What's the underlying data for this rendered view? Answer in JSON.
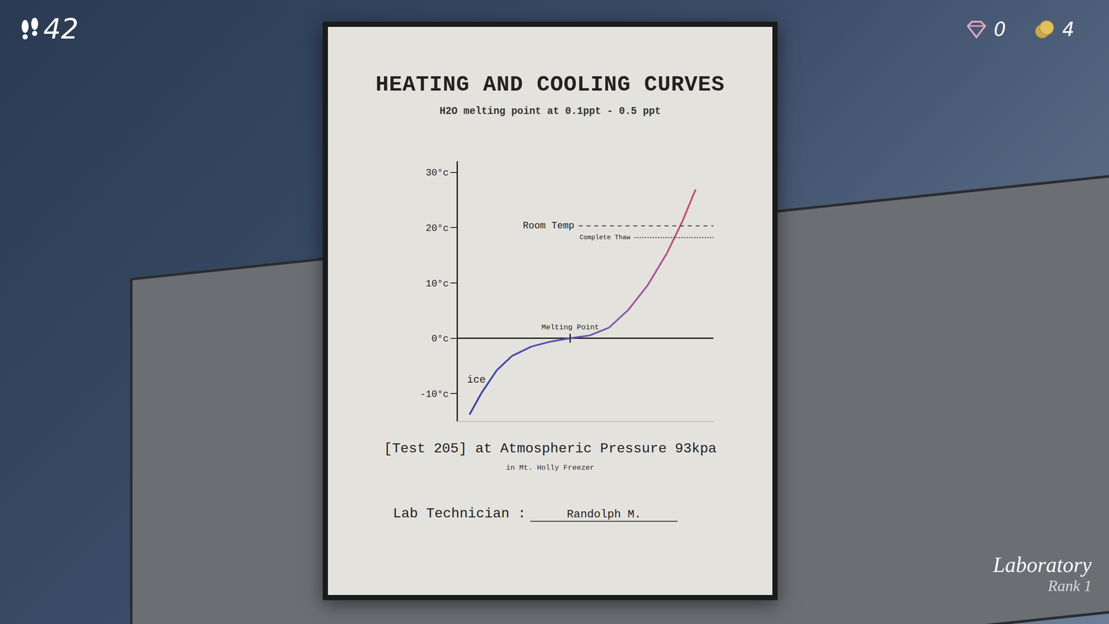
{
  "chart_data": {
    "type": "line",
    "title": "HEATING AND COOLING CURVES",
    "subtitle": "H2O melting point at 0.1ppt -  0.5 ppt",
    "x": [
      0.5,
      1.0,
      1.67,
      2.33,
      3.17,
      4.0,
      4.83,
      5.67,
      6.5,
      7.33,
      8.17,
      9.0,
      9.67,
      10.23
    ],
    "series": [
      {
        "values": [
          -13.8,
          -10,
          -5.8,
          -3.2,
          -1.5,
          -0.6,
          0,
          0.5,
          1.9,
          5.1,
          9.6,
          15.4,
          21.2,
          26.9
        ],
        "colors": [
          "#3a3f9c",
          "#3f43a2",
          "#4548a8",
          "#4b4cab",
          "#5250ae",
          "#5a53b0",
          "#6656b2",
          "#7658b3",
          "#8a58b0",
          "#9c56a2",
          "#ad5390",
          "#b9507c",
          "#c24f6c",
          "#c94f60"
        ]
      }
    ],
    "xlim": [
      0,
      11
    ],
    "ylim": [
      -15,
      32
    ],
    "yticks": [
      {
        "value": 30,
        "label": "30°c"
      },
      {
        "value": 20,
        "label": "20°c"
      },
      {
        "value": 10,
        "label": "10°c"
      },
      {
        "value": 0,
        "label": "0°c"
      },
      {
        "value": -10,
        "label": "-10°c"
      }
    ],
    "tick_labels": "y",
    "grid": false,
    "reference_lines": [
      {
        "label": "Room Temp",
        "value": 20.3,
        "x": [
          5.2,
          11
        ],
        "line_style": "dashed"
      },
      {
        "label": "Complete Thaw",
        "value": 18.2,
        "x": [
          7.6,
          11
        ],
        "line_style": "dotted"
      }
    ],
    "annotations": [
      {
        "text": "Melting Point",
        "x": 4.83,
        "y": 0
      },
      {
        "text": "ice",
        "x": 0.8,
        "y": -7.5
      }
    ]
  },
  "document": {
    "caption": "[Test 205] at Atmospheric Pressure 93kpa",
    "location": "in Mt. Holly Freezer",
    "technician_label": "Lab Technician :",
    "technician": "Randolph  M."
  },
  "hud": {
    "steps": 42,
    "gems": 0,
    "coins": 4,
    "room": "Laboratory",
    "rank": "Rank 1"
  }
}
